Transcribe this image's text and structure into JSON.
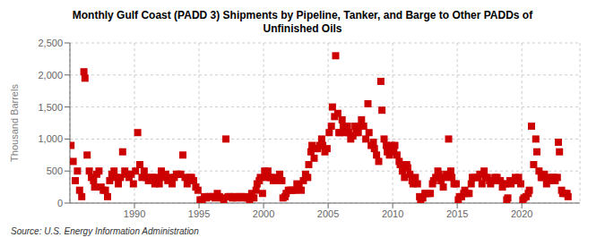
{
  "chart_data": {
    "type": "scatter",
    "title": "Monthly Gulf Coast (PADD 3) Shipments by Pipeline, Tanker, and Barge to Other PADDs of\nUnfinished Oils",
    "ylabel": "Thousand Barrels",
    "annotations": [
      "Source: U.S. Energy Information Administration"
    ],
    "color": "#cc0000",
    "marker": "square",
    "grid": true,
    "xlim": [
      1985.0,
      2024.5
    ],
    "xticks": [
      1990,
      1995,
      2000,
      2005,
      2010,
      2015,
      2020
    ],
    "ylim": [
      0,
      2500
    ],
    "yticks": [
      0,
      500,
      {
        "value": 1000,
        "label": "1,000"
      },
      {
        "value": 1500,
        "label": "1,500"
      },
      {
        "value": 2000,
        "label": "2,000"
      },
      {
        "value": 2500,
        "label": "2,500"
      }
    ],
    "x": [
      1985.083,
      1985.25,
      1985.417,
      1985.583,
      1985.75,
      1985.917,
      1986.083,
      1986.167,
      1986.333,
      1986.5,
      1986.667,
      1986.833,
      1986.917,
      1987.083,
      1987.25,
      1987.417,
      1987.583,
      1987.75,
      1987.917,
      1988.083,
      1988.25,
      1988.417,
      1988.583,
      1988.75,
      1988.917,
      1989.083,
      1989.25,
      1989.417,
      1989.583,
      1989.75,
      1989.917,
      1990.083,
      1990.25,
      1990.417,
      1990.583,
      1990.75,
      1990.917,
      1991.083,
      1991.25,
      1991.417,
      1991.583,
      1991.75,
      1991.917,
      1992.083,
      1992.25,
      1992.417,
      1992.583,
      1992.75,
      1992.917,
      1993.083,
      1993.25,
      1993.417,
      1993.583,
      1993.75,
      1993.917,
      1994.083,
      1994.25,
      1994.417,
      1994.583,
      1994.75,
      1994.917,
      1995.083,
      1995.25,
      1995.417,
      1995.583,
      1995.75,
      1995.917,
      1996.083,
      1996.25,
      1996.417,
      1996.583,
      1996.75,
      1996.917,
      1997.083,
      1997.25,
      1997.417,
      1997.583,
      1997.75,
      1997.917,
      1998.083,
      1998.25,
      1998.417,
      1998.583,
      1998.75,
      1998.917,
      1999.083,
      1999.25,
      1999.417,
      1999.5,
      1999.667,
      1999.75,
      1999.917,
      2000.083,
      2000.167,
      2000.333,
      2000.5,
      2000.583,
      2000.75,
      2000.917,
      2001.083,
      2001.25,
      2001.417,
      2001.5,
      2001.667,
      2001.75,
      2001.917,
      2002.083,
      2002.25,
      2002.417,
      2002.583,
      2002.75,
      2002.917,
      2003.083,
      2003.25,
      2003.417,
      2003.5,
      2003.667,
      2003.75,
      2003.917,
      2004.083,
      2004.167,
      2004.333,
      2004.5,
      2004.583,
      2004.75,
      2004.917,
      2005.083,
      2005.25,
      2005.333,
      2005.5,
      2005.583,
      2005.75,
      2005.833,
      2005.917,
      2006.083,
      2006.167,
      2006.333,
      2006.5,
      2006.583,
      2006.75,
      2006.917,
      2007.083,
      2007.167,
      2007.333,
      2007.5,
      2007.583,
      2007.75,
      2007.917,
      2008.083,
      2008.167,
      2008.333,
      2008.5,
      2008.583,
      2008.75,
      2008.917,
      2009.083,
      2009.167,
      2009.333,
      2009.5,
      2009.583,
      2009.75,
      2009.917,
      2010.083,
      2010.167,
      2010.333,
      2010.5,
      2010.583,
      2010.75,
      2010.917,
      2011.083,
      2011.167,
      2011.333,
      2011.5,
      2011.583,
      2011.75,
      2011.917,
      2012.083,
      2012.167,
      2012.333,
      2012.5,
      2012.583,
      2012.75,
      2012.917,
      2013.083,
      2013.167,
      2013.333,
      2013.5,
      2013.583,
      2013.75,
      2013.917,
      2014.083,
      2014.167,
      2014.333,
      2014.5,
      2014.583,
      2014.75,
      2014.917,
      2015.083,
      2015.167,
      2015.333,
      2015.5,
      2015.583,
      2015.75,
      2015.917,
      2016.083,
      2016.167,
      2016.333,
      2016.5,
      2016.583,
      2016.75,
      2016.917,
      2017.083,
      2017.167,
      2017.333,
      2017.5,
      2017.583,
      2017.75,
      2017.917,
      2018.083,
      2018.167,
      2018.333,
      2018.5,
      2018.583,
      2018.75,
      2018.833,
      2018.917,
      2019.083,
      2019.167,
      2019.333,
      2019.5,
      2019.583,
      2019.75,
      2019.917,
      2020.083,
      2020.167,
      2020.333,
      2020.5,
      2020.583,
      2020.75,
      2020.917,
      2021.083,
      2021.167,
      2021.333,
      2021.5,
      2021.583,
      2021.75,
      2021.917,
      2022.083,
      2022.167,
      2022.333,
      2022.5,
      2022.583,
      2022.75,
      2022.833,
      2022.917,
      2023.083,
      2023.167,
      2023.333,
      2023.5,
      2023.583
    ],
    "values": [
      900,
      650,
      350,
      500,
      200,
      100,
      2050,
      1950,
      750,
      500,
      400,
      350,
      250,
      450,
      500,
      250,
      200,
      200,
      100,
      350,
      450,
      500,
      400,
      300,
      400,
      800,
      500,
      450,
      400,
      450,
      300,
      500,
      1100,
      600,
      400,
      500,
      400,
      350,
      400,
      400,
      300,
      400,
      300,
      500,
      400,
      450,
      350,
      400,
      300,
      400,
      450,
      450,
      450,
      750,
      400,
      300,
      400,
      400,
      350,
      250,
      200,
      50,
      50,
      100,
      80,
      100,
      100,
      100,
      80,
      150,
      100,
      80,
      50,
      1000,
      100,
      100,
      80,
      100,
      80,
      100,
      100,
      80,
      100,
      80,
      50,
      150,
      80,
      200,
      300,
      350,
      400,
      150,
      500,
      400,
      500,
      400,
      400,
      350,
      350,
      400,
      450,
      350,
      80,
      100,
      150,
      200,
      200,
      200,
      200,
      300,
      250,
      200,
      350,
      450,
      400,
      600,
      800,
      900,
      700,
      850,
      850,
      900,
      1000,
      900,
      800,
      850,
      1100,
      1200,
      1500,
      1350,
      2300,
      1400,
      1100,
      1100,
      1300,
      1200,
      1100,
      1200,
      1100,
      1000,
      1050,
      1200,
      1100,
      1100,
      1200,
      1300,
      1200,
      1000,
      1550,
      1100,
      900,
      950,
      850,
      750,
      650,
      1900,
      1450,
      1000,
      900,
      800,
      750,
      900,
      800,
      900,
      750,
      650,
      600,
      500,
      400,
      600,
      550,
      450,
      350,
      300,
      400,
      300,
      100,
      50,
      80,
      150,
      150,
      150,
      150,
      300,
      350,
      400,
      500,
      450,
      350,
      250,
      400,
      450,
      1000,
      500,
      400,
      300,
      300,
      50,
      100,
      100,
      150,
      200,
      150,
      150,
      300,
      400,
      400,
      400,
      400,
      450,
      300,
      500,
      400,
      400,
      350,
      300,
      350,
      400,
      400,
      350,
      350,
      250,
      300,
      300,
      50,
      80,
      350,
      300,
      350,
      400,
      350,
      400,
      300,
      50,
      80,
      100,
      150,
      200,
      1200,
      600,
      1000,
      800,
      500,
      400,
      400,
      450,
      300,
      400,
      350,
      400,
      400,
      350,
      400,
      950,
      800,
      200,
      150,
      150,
      150,
      100
    ]
  }
}
